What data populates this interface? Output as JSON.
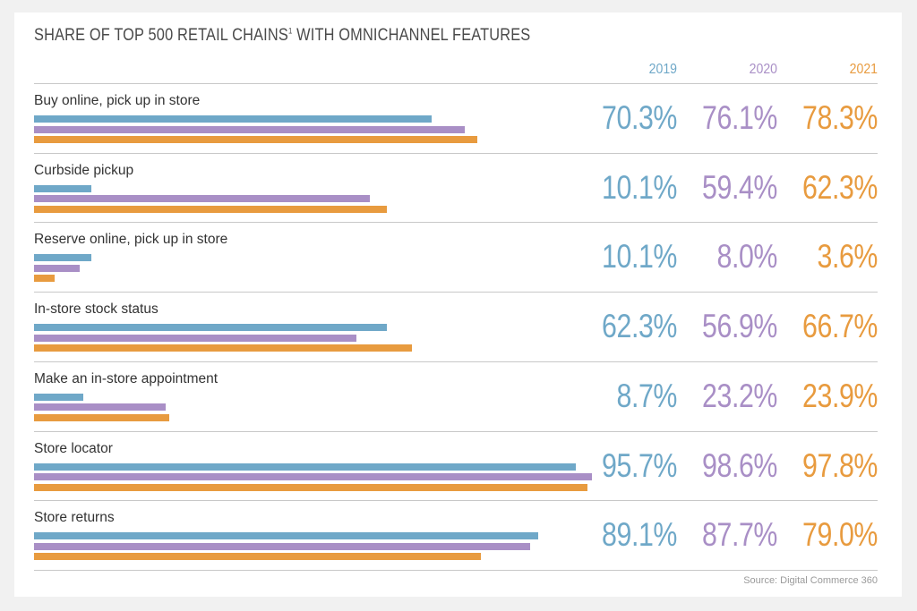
{
  "title_main": "SHARE OF TOP 500 RETAIL CHAINS",
  "title_sup": "1",
  "title_rest": " WITH OMNICHANNEL FEATURES",
  "source": "Source: Digital Commerce 360",
  "colors": {
    "2019": "#6fa8c8",
    "2020": "#a98fc6",
    "2021": "#e89b3f"
  },
  "chart_data": {
    "type": "bar",
    "orientation": "horizontal",
    "title": "SHARE OF TOP 500 RETAIL CHAINS WITH OMNICHANNEL FEATURES",
    "categories": [
      "Buy online, pick up in store",
      "Curbside pickup",
      "Reserve online, pick up in store",
      "In-store stock status",
      "Make an in-store appointment",
      "Store locator",
      "Store returns"
    ],
    "series": [
      {
        "name": "2019",
        "values": [
          70.3,
          10.1,
          10.1,
          62.3,
          8.7,
          95.7,
          89.1
        ],
        "labels": [
          "70.3%",
          "10.1%",
          "10.1%",
          "62.3%",
          "8.7%",
          "95.7%",
          "89.1%"
        ]
      },
      {
        "name": "2020",
        "values": [
          76.1,
          59.4,
          8.0,
          56.9,
          23.2,
          98.6,
          87.7
        ],
        "labels": [
          "76.1%",
          "59.4%",
          "8.0%",
          "56.9%",
          "23.2%",
          "98.6%",
          "87.7%"
        ]
      },
      {
        "name": "2021",
        "values": [
          78.3,
          62.3,
          3.6,
          66.7,
          23.9,
          97.8,
          79.0
        ],
        "labels": [
          "78.3%",
          "62.3%",
          "3.6%",
          "66.7%",
          "23.9%",
          "97.8%",
          "79.0%"
        ]
      }
    ],
    "xlim": [
      0,
      100
    ],
    "unit": "%",
    "grid": false
  }
}
